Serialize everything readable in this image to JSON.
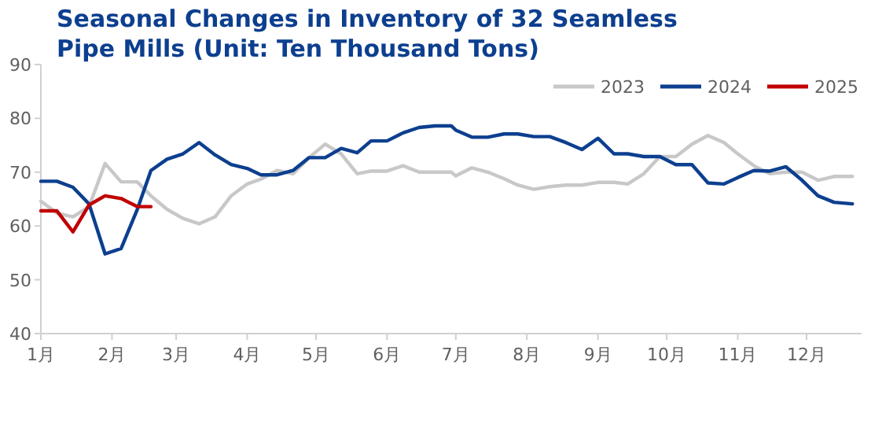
{
  "chart_data": {
    "type": "line",
    "title": "Seasonal Changes in Inventory of 32 Seamless Pipe Mills (Unit: Ten Thousand Tons)",
    "x": [
      "--01-01",
      "--01-08",
      "--01-15",
      "--01-22",
      "--01-29",
      "--02-05",
      "--02-12",
      "--02-18",
      "--02-25",
      "--03-04",
      "--03-11",
      "--03-18",
      "--03-25",
      "--04-01",
      "--04-07",
      "--04-14",
      "--04-21",
      "--04-28",
      "--05-05",
      "--05-12",
      "--05-19",
      "--05-25",
      "--06-01",
      "--06-08",
      "--06-15",
      "--06-22",
      "--06-29",
      "--07-01",
      "--07-08",
      "--07-15",
      "--07-22",
      "--07-28",
      "--08-04",
      "--08-11",
      "--08-18",
      "--08-25",
      "--09-01",
      "--09-08",
      "--09-14",
      "--09-21",
      "--09-28",
      "--10-05",
      "--10-12",
      "--10-19",
      "--10-26",
      "--11-01",
      "--11-08",
      "--11-15",
      "--11-22",
      "--11-29",
      "--12-06",
      "--12-13",
      "--12-21"
    ],
    "series": [
      {
        "name": "2023",
        "color": "#c8c8c8",
        "values": [
          64.6,
          62.4,
          61.7,
          63.6,
          71.6,
          68.2,
          68.2,
          65.6,
          63.1,
          61.4,
          60.4,
          61.7,
          65.6,
          67.8,
          68.7,
          70.3,
          69.7,
          72.7,
          75.2,
          73.4,
          69.7,
          70.2,
          70.2,
          71.2,
          70.0,
          70.0,
          70.0,
          69.3,
          70.8,
          70.0,
          68.8,
          67.6,
          66.8,
          67.3,
          67.6,
          67.6,
          68.1,
          68.1,
          67.8,
          69.7,
          72.9,
          72.9,
          75.2,
          76.8,
          75.5,
          73.4,
          71.2,
          69.7,
          70.0,
          70.0,
          68.5,
          69.2,
          69.2
        ]
      },
      {
        "name": "2024",
        "color": "#0d3f8f",
        "values": [
          68.3,
          68.3,
          67.2,
          64.1,
          54.8,
          55.8,
          63.0,
          70.3,
          72.4,
          73.4,
          75.5,
          73.2,
          71.4,
          70.7,
          69.5,
          69.5,
          70.3,
          72.7,
          72.7,
          74.4,
          73.6,
          75.8,
          75.8,
          77.3,
          78.3,
          78.6,
          78.6,
          77.8,
          76.5,
          76.5,
          77.1,
          77.1,
          76.6,
          76.6,
          75.5,
          74.2,
          76.3,
          73.4,
          73.4,
          72.9,
          72.9,
          71.4,
          71.4,
          68.0,
          67.8,
          69.0,
          70.3,
          70.2,
          71.0,
          68.5,
          65.6,
          64.4,
          64.1
        ]
      },
      {
        "name": "2025",
        "color": "#c00000",
        "values": [
          62.8,
          62.8,
          58.9,
          63.9,
          65.6,
          65.1,
          63.6,
          63.6,
          null,
          null,
          null,
          null,
          null,
          null,
          null,
          null,
          null,
          null,
          null,
          null,
          null,
          null,
          null,
          null,
          null,
          null,
          null,
          null,
          null,
          null,
          null,
          null,
          null,
          null,
          null,
          null,
          null,
          null,
          null,
          null,
          null,
          null,
          null,
          null,
          null,
          null,
          null,
          null,
          null,
          null,
          null,
          null,
          null
        ]
      }
    ],
    "xlim": [
      "--01-01",
      "--12-25"
    ],
    "xticks": [
      {
        "value": "--01-01",
        "label": "1月"
      },
      {
        "value": "--02-01",
        "label": "2月"
      },
      {
        "value": "--03-01",
        "label": "3月"
      },
      {
        "value": "--04-01",
        "label": "4月"
      },
      {
        "value": "--05-01",
        "label": "5月"
      },
      {
        "value": "--06-01",
        "label": "6月"
      },
      {
        "value": "--07-01",
        "label": "7月"
      },
      {
        "value": "--08-01",
        "label": "8月"
      },
      {
        "value": "--09-01",
        "label": "9月"
      },
      {
        "value": "--10-01",
        "label": "10月"
      },
      {
        "value": "--11-01",
        "label": "11月"
      },
      {
        "value": "--12-01",
        "label": "12月"
      }
    ],
    "ylim": [
      40,
      90
    ],
    "yticks": [
      40,
      50,
      60,
      70,
      80,
      90
    ],
    "legend": "top right"
  }
}
